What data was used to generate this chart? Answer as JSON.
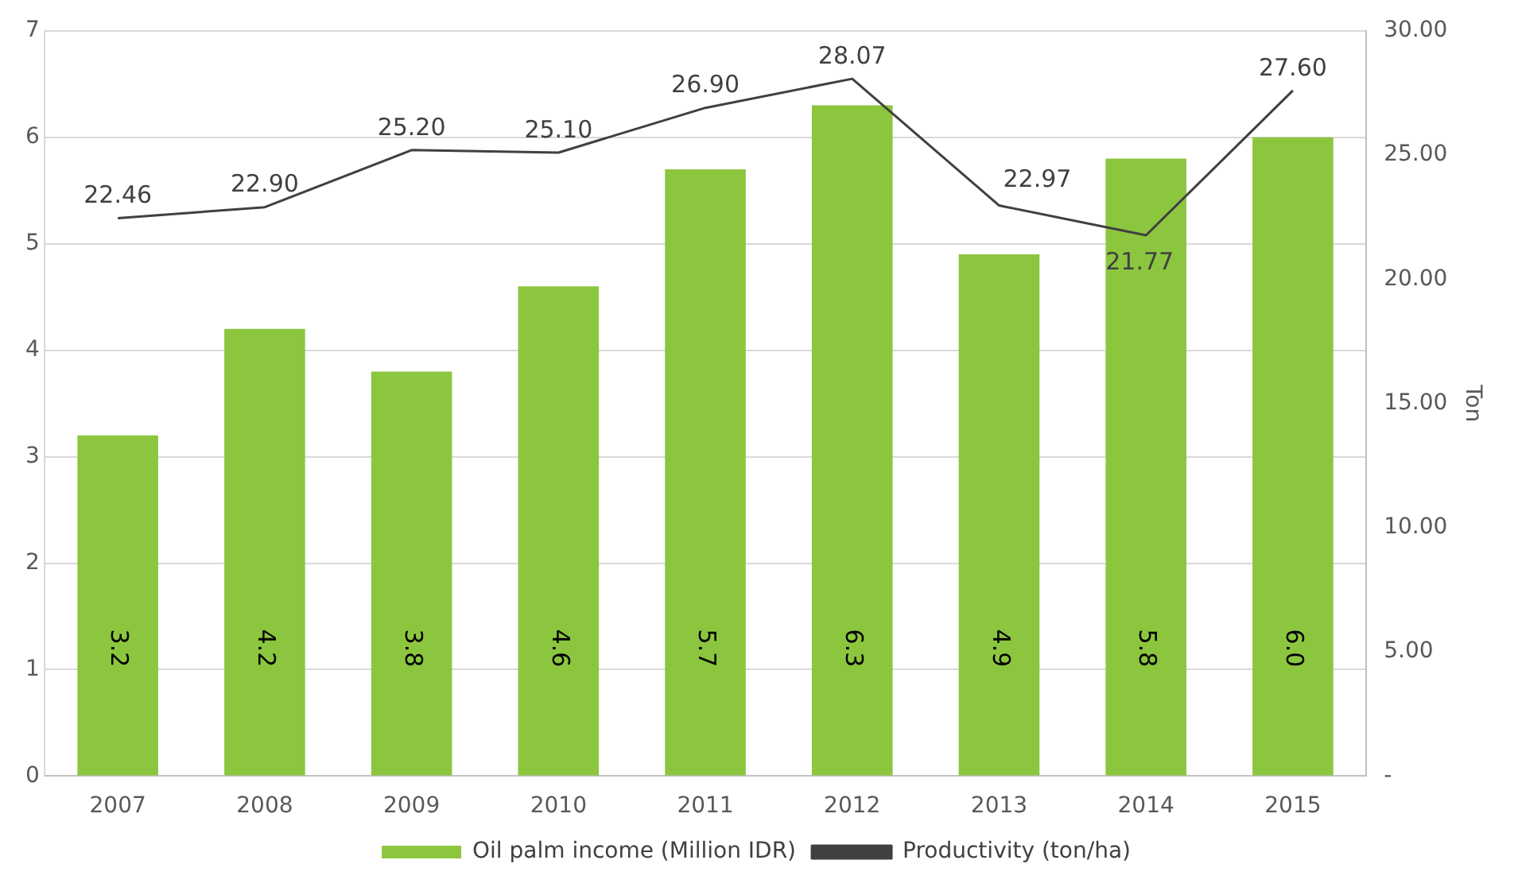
{
  "chart_data": {
    "type": "bar",
    "categories": [
      "2007",
      "2008",
      "2009",
      "2010",
      "2011",
      "2012",
      "2013",
      "2014",
      "2015"
    ],
    "y2label": "Ton",
    "series": [
      {
        "name": "Oil palm income (Million IDR)",
        "color": "#8cc63f",
        "values": [
          3.2,
          4.2,
          3.8,
          4.6,
          5.7,
          6.3,
          4.9,
          5.8,
          6.0
        ],
        "value_labels": [
          "3.2",
          "4.2",
          "3.8",
          "4.6",
          "5.7",
          "6.3",
          "4.9",
          "5.8",
          "6.0"
        ]
      },
      {
        "name": "Productivity (ton/ha)",
        "type": "line",
        "axis": "y2",
        "color": "#404040",
        "marker": "none",
        "values": [
          22.46,
          22.9,
          25.2,
          25.1,
          26.9,
          28.07,
          22.97,
          21.77,
          27.6
        ],
        "value_labels": [
          "22.46",
          "22.90",
          "25.20",
          "25.10",
          "26.90",
          "28.07",
          "22.97",
          "21.77",
          "27.60"
        ]
      }
    ],
    "ylim": [
      0,
      7
    ],
    "yticks": [
      0,
      1,
      2,
      3,
      4,
      5,
      6,
      7
    ],
    "y2lim": [
      0,
      30
    ],
    "y2ticks": [
      {
        "value": 0,
        "label": "-"
      },
      {
        "value": 5,
        "label": "5.00"
      },
      {
        "value": 10,
        "label": "10.00"
      },
      {
        "value": 15,
        "label": "15.00"
      },
      {
        "value": 20,
        "label": "20.00"
      },
      {
        "value": 25,
        "label": "25.00"
      },
      {
        "value": 30,
        "label": "30.00"
      }
    ],
    "grid": "y",
    "legend": "bottom"
  }
}
